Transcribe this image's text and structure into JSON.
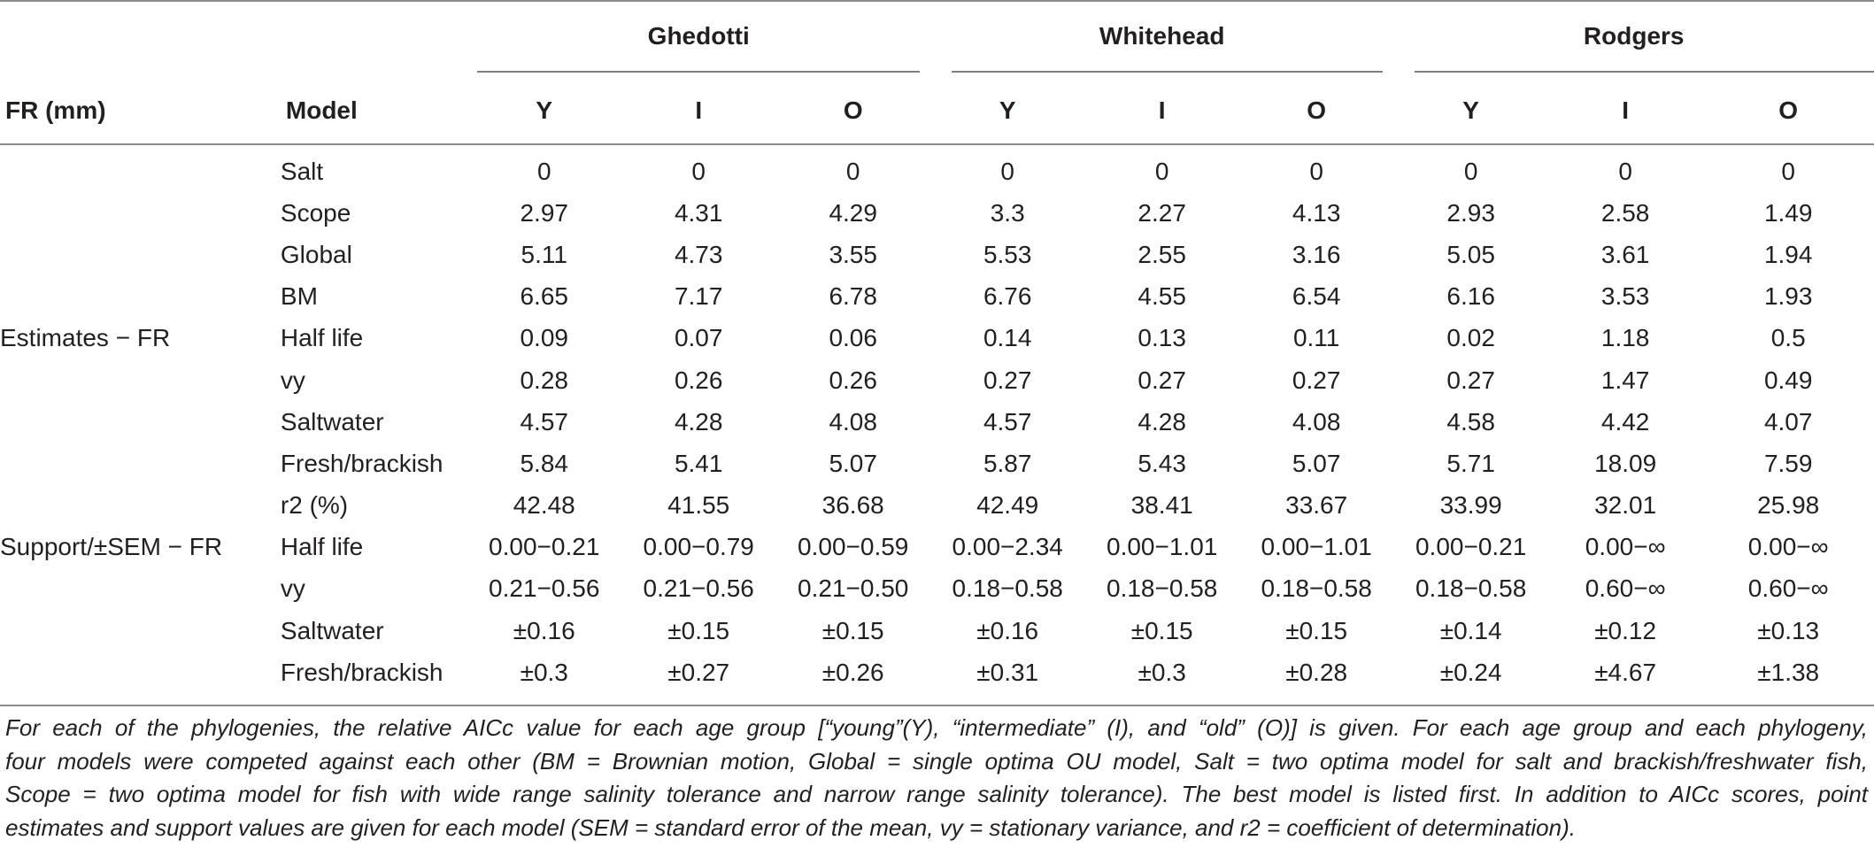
{
  "table": {
    "groups": [
      "Ghedotti",
      "Whitehead",
      "Rodgers"
    ],
    "col_fr": "FR (mm)",
    "col_model": "Model",
    "subcols": [
      "Y",
      "I",
      "O",
      "Y",
      "I",
      "O",
      "Y",
      "I",
      "O"
    ],
    "rows": [
      {
        "section": "",
        "model": "Salt",
        "values": [
          "0",
          "0",
          "0",
          "0",
          "0",
          "0",
          "0",
          "0",
          "0"
        ]
      },
      {
        "section": "",
        "model": "Scope",
        "values": [
          "2.97",
          "4.31",
          "4.29",
          "3.3",
          "2.27",
          "4.13",
          "2.93",
          "2.58",
          "1.49"
        ]
      },
      {
        "section": "",
        "model": "Global",
        "values": [
          "5.11",
          "4.73",
          "3.55",
          "5.53",
          "2.55",
          "3.16",
          "5.05",
          "3.61",
          "1.94"
        ]
      },
      {
        "section": "",
        "model": "BM",
        "values": [
          "6.65",
          "7.17",
          "6.78",
          "6.76",
          "4.55",
          "6.54",
          "6.16",
          "3.53",
          "1.93"
        ]
      },
      {
        "section": "Estimates − FR",
        "model": "Half life",
        "values": [
          "0.09",
          "0.07",
          "0.06",
          "0.14",
          "0.13",
          "0.11",
          "0.02",
          "1.18",
          "0.5"
        ]
      },
      {
        "section": "",
        "model": "vy",
        "values": [
          "0.28",
          "0.26",
          "0.26",
          "0.27",
          "0.27",
          "0.27",
          "0.27",
          "1.47",
          "0.49"
        ]
      },
      {
        "section": "",
        "model": "Saltwater",
        "values": [
          "4.57",
          "4.28",
          "4.08",
          "4.57",
          "4.28",
          "4.08",
          "4.58",
          "4.42",
          "4.07"
        ]
      },
      {
        "section": "",
        "model": "Fresh/brackish",
        "values": [
          "5.84",
          "5.41",
          "5.07",
          "5.87",
          "5.43",
          "5.07",
          "5.71",
          "18.09",
          "7.59"
        ]
      },
      {
        "section": "",
        "model": "r2 (%)",
        "values": [
          "42.48",
          "41.55",
          "36.68",
          "42.49",
          "38.41",
          "33.67",
          "33.99",
          "32.01",
          "25.98"
        ]
      },
      {
        "section": "Support/±SEM − FR",
        "model": "Half life",
        "values": [
          "0.00−0.21",
          "0.00−0.79",
          "0.00−0.59",
          "0.00−2.34",
          "0.00−1.01",
          "0.00−1.01",
          "0.00−0.21",
          "0.00−∞",
          "0.00−∞"
        ]
      },
      {
        "section": "",
        "model": "vy",
        "values": [
          "0.21−0.56",
          "0.21−0.56",
          "0.21−0.50",
          "0.18−0.58",
          "0.18−0.58",
          "0.18−0.58",
          "0.18−0.58",
          "0.60−∞",
          "0.60−∞"
        ]
      },
      {
        "section": "",
        "model": "Saltwater",
        "values": [
          "±0.16",
          "±0.15",
          "±0.15",
          "±0.16",
          "±0.15",
          "±0.15",
          "±0.14",
          "±0.12",
          "±0.13"
        ]
      },
      {
        "section": "",
        "model": "Fresh/brackish",
        "values": [
          "±0.3",
          "±0.27",
          "±0.26",
          "±0.31",
          "±0.3",
          "±0.28",
          "±0.24",
          "±4.67",
          "±1.38"
        ]
      }
    ]
  },
  "footnote": [
    "For each of the phylogenies, the relative AICc value for each age group [“young”(Y), “intermediate” (I), and “old” (O)] is given. For each age group and each phylogeny,",
    "four models were competed against each other (BM = Brownian motion, Global = single optima OU model, Salt = two optima model for salt and brackish/freshwater fish,",
    "Scope = two optima model for fish with wide range salinity tolerance and narrow range salinity tolerance). The best model is listed first. In addition to AICc scores, point",
    "estimates and support values are given for each model (SEM = standard error of the mean, vy = stationary variance, and r2 = coefficient of determination)."
  ]
}
